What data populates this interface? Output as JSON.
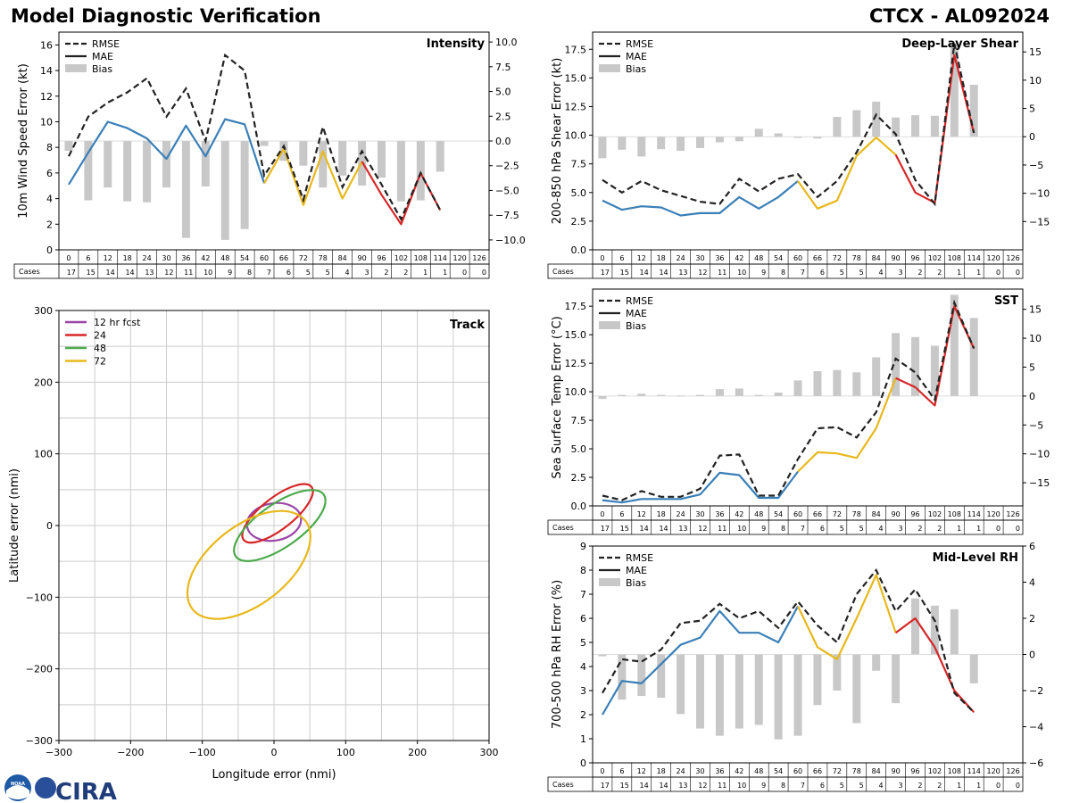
{
  "header": {
    "title": "Model Diagnostic Verification",
    "storm": "CTCX - AL092024"
  },
  "colors": {
    "rmse": "#222222",
    "blue": "#3a7fb8",
    "yellow": "#e8b81b",
    "red": "#d62728",
    "bias": "#c8c8c8",
    "grid": "#cccccc",
    "fcst12": "#9b46a6",
    "fcst24": "#d62728",
    "fcst48": "#4caa4c",
    "fcst72": "#e8b81b"
  },
  "logo": {
    "noaa": "NOAA",
    "text": "CIRA"
  },
  "legend": {
    "rmse": "RMSE",
    "mae": "MAE",
    "bias": "Bias"
  },
  "table": {
    "hours": [
      0,
      6,
      12,
      18,
      24,
      30,
      36,
      42,
      48,
      54,
      60,
      66,
      72,
      78,
      84,
      90,
      96,
      102,
      108,
      114,
      120,
      126
    ],
    "cases_label": "Cases",
    "cases": [
      17,
      15,
      14,
      14,
      13,
      12,
      11,
      10,
      9,
      8,
      7,
      6,
      5,
      5,
      4,
      3,
      2,
      2,
      1,
      1,
      0,
      0
    ]
  },
  "chart_data": [
    {
      "id": "intensity",
      "type": "line",
      "title": "Intensity",
      "ylabel": "10m Wind Speed Error (kt)",
      "ylim": [
        0,
        17
      ],
      "yticks": [
        0,
        2,
        4,
        6,
        8,
        10,
        12,
        14,
        16
      ],
      "y2lim": [
        -11,
        11
      ],
      "y2ticks": [
        -10,
        -7.5,
        -5,
        -2.5,
        0,
        2.5,
        5,
        7.5,
        10
      ],
      "y2ticklabels": [
        "−10.0",
        "−7.5",
        "−5.0",
        "−2.5",
        "0.0",
        "2.5",
        "5.0",
        "7.5",
        "10.0"
      ],
      "rmse": [
        7.3,
        10.4,
        11.5,
        12.3,
        13.4,
        10.4,
        12.6,
        8.5,
        15.2,
        14.0,
        5.8,
        8.1,
        3.9,
        9.6,
        4.9,
        7.7,
        5.1,
        2.4,
        6.0,
        3.1
      ],
      "mae": [
        5.1,
        7.6,
        10.0,
        9.5,
        8.7,
        7.1,
        9.7,
        7.3,
        10.2,
        9.8,
        5.2,
        7.9,
        3.5,
        7.7,
        4.0,
        6.9,
        4.3,
        2.0,
        6.0,
        3.1
      ],
      "bias": [
        -1.0,
        -6.0,
        -4.7,
        -6.1,
        -6.2,
        -4.7,
        -9.8,
        -4.6,
        -10.0,
        -8.9,
        -0.5,
        -2.0,
        -2.5,
        -4.7,
        -3.5,
        -4.5,
        -3.7,
        -6.1,
        -6.0,
        -3.1
      ],
      "mae_segments": {
        "blue_end": 60,
        "yellow_end": 90
      }
    },
    {
      "id": "shear",
      "type": "line",
      "title": "Deep-Layer Shear",
      "ylabel": "200-850 hPa Shear Error (kt)",
      "ylim": [
        0,
        19
      ],
      "yticks": [
        0,
        2.5,
        5,
        7.5,
        10,
        12.5,
        15,
        17.5
      ],
      "yticklabels": [
        "0.0",
        "2.5",
        "5.0",
        "7.5",
        "10.0",
        "12.5",
        "15.0",
        "17.5"
      ],
      "y2lim": [
        -20,
        18.5
      ],
      "y2ticks": [
        -15,
        -10,
        -5,
        0,
        5,
        10,
        15
      ],
      "y2ticklabels": [
        "−15",
        "−10",
        "−5",
        "0",
        "5",
        "10",
        "15"
      ],
      "rmse": [
        6.1,
        5.0,
        6.0,
        5.2,
        4.7,
        4.2,
        4.0,
        6.2,
        5.1,
        6.2,
        6.6,
        4.6,
        6.0,
        8.5,
        11.8,
        10.1,
        6.1,
        4.0,
        18.0,
        10.2
      ],
      "mae": [
        4.3,
        3.5,
        3.8,
        3.7,
        3.0,
        3.2,
        3.2,
        4.6,
        3.6,
        4.6,
        6.0,
        3.6,
        4.3,
        8.2,
        9.8,
        8.3,
        5.0,
        4.1,
        17.0,
        10.2
      ],
      "bias": [
        -3.8,
        -2.3,
        -3.5,
        -2.2,
        -2.5,
        -2.0,
        -1.0,
        -0.8,
        1.4,
        0.6,
        -0.2,
        -0.3,
        3.5,
        4.7,
        6.2,
        3.4,
        3.8,
        3.7,
        16.5,
        9.2
      ],
      "mae_segments": {
        "blue_end": 60,
        "yellow_end": 90
      }
    },
    {
      "id": "sst",
      "type": "line",
      "title": "SST",
      "ylabel": "Sea Surface Temp Error (°C)",
      "ylim": [
        0,
        19
      ],
      "yticks": [
        0,
        2.5,
        5,
        7.5,
        10,
        12.5,
        15,
        17.5
      ],
      "yticklabels": [
        "0.0",
        "2.5",
        "5.0",
        "7.5",
        "10.0",
        "12.5",
        "15.0",
        "17.5"
      ],
      "y2lim": [
        -19,
        18.5
      ],
      "y2ticks": [
        -15,
        -10,
        -5,
        0,
        5,
        10,
        15
      ],
      "y2ticklabels": [
        "−15",
        "−10",
        "−5",
        "0",
        "5",
        "10",
        "15"
      ],
      "rmse": [
        0.9,
        0.5,
        1.3,
        0.8,
        0.8,
        1.5,
        4.4,
        4.5,
        0.9,
        0.9,
        4.1,
        6.8,
        6.9,
        6.0,
        8.2,
        12.9,
        11.7,
        9.3,
        17.8,
        13.8
      ],
      "mae": [
        0.5,
        0.3,
        0.6,
        0.6,
        0.6,
        1.0,
        2.9,
        2.7,
        0.7,
        0.7,
        3.0,
        4.7,
        4.6,
        4.2,
        6.8,
        11.2,
        10.4,
        8.8,
        17.5,
        13.8
      ],
      "bias": [
        -0.5,
        0.2,
        0.4,
        0.2,
        0.1,
        0.2,
        1.2,
        1.3,
        0.2,
        0.6,
        2.7,
        4.3,
        4.5,
        4.1,
        6.7,
        10.9,
        10.2,
        8.7,
        17.5,
        13.5
      ],
      "mae_segments": {
        "blue_end": 60,
        "yellow_end": 90
      }
    },
    {
      "id": "rh",
      "type": "line",
      "title": "Mid-Level RH",
      "ylabel": "700-500 hPa RH Error (%)",
      "ylim": [
        0,
        9
      ],
      "yticks": [
        0,
        1,
        2,
        3,
        4,
        5,
        6,
        7,
        8,
        9
      ],
      "y2lim": [
        -6,
        6
      ],
      "y2ticks": [
        -6,
        -4,
        -2,
        0,
        2,
        4,
        6
      ],
      "y2ticklabels": [
        "−6",
        "−4",
        "−2",
        "0",
        "2",
        "4",
        "6"
      ],
      "rmse": [
        2.9,
        4.3,
        4.2,
        4.7,
        5.8,
        5.9,
        6.6,
        6.0,
        6.3,
        5.6,
        6.7,
        5.7,
        5.0,
        7.0,
        8.0,
        6.3,
        7.2,
        5.9,
        2.9,
        2.1
      ],
      "mae": [
        2.0,
        3.4,
        3.3,
        4.1,
        4.9,
        5.2,
        6.3,
        5.4,
        5.4,
        5.0,
        6.5,
        4.8,
        4.3,
        6.0,
        7.8,
        5.4,
        6.0,
        4.8,
        3.0,
        2.1
      ],
      "bias": [
        -0.1,
        -2.5,
        -2.3,
        -2.4,
        -3.3,
        -4.1,
        -4.5,
        -4.1,
        -3.9,
        -4.7,
        -4.5,
        -2.8,
        -2.0,
        -3.8,
        -0.9,
        -2.7,
        3.1,
        2.7,
        2.5,
        -1.6
      ],
      "mae_segments": {
        "blue_end": 60,
        "yellow_end": 90
      }
    },
    {
      "id": "track",
      "type": "scatter",
      "title": "Track",
      "xlabel": "Longitude error (nmi)",
      "ylabel": "Latitude error (nmi)",
      "xlim": [
        -300,
        300
      ],
      "ylim": [
        -300,
        300
      ],
      "xticks": [
        -300,
        -200,
        -100,
        0,
        100,
        200,
        300
      ],
      "xticklabels": [
        "−300",
        "−200",
        "−100",
        "0",
        "100",
        "200",
        "300"
      ],
      "yticks": [
        -300,
        -200,
        -100,
        0,
        100,
        200,
        300
      ],
      "yticklabels": [
        "−300",
        "−200",
        "−100",
        "0",
        "100",
        "200",
        "300"
      ],
      "grid_x": [
        -250,
        -200,
        -150,
        -100,
        -50,
        0,
        50,
        100,
        150,
        200,
        250
      ],
      "grid_y": [
        -250,
        -200,
        -150,
        -100,
        -50,
        0,
        50,
        100,
        150,
        200,
        250
      ],
      "ellipses": [
        {
          "name": "12 hr fcst",
          "color_key": "fcst12",
          "cx": 0,
          "cy": 5,
          "rx": 38,
          "ry": 26,
          "angle": 10
        },
        {
          "name": "24",
          "color_key": "fcst24",
          "cx": 5,
          "cy": 17,
          "rx": 60,
          "ry": 22,
          "angle": 38
        },
        {
          "name": "48",
          "color_key": "fcst48",
          "cx": 8,
          "cy": 0,
          "rx": 75,
          "ry": 30,
          "angle": 35
        },
        {
          "name": "72",
          "color_key": "fcst72",
          "cx": -35,
          "cy": -55,
          "rx": 100,
          "ry": 55,
          "angle": 38
        }
      ]
    }
  ]
}
